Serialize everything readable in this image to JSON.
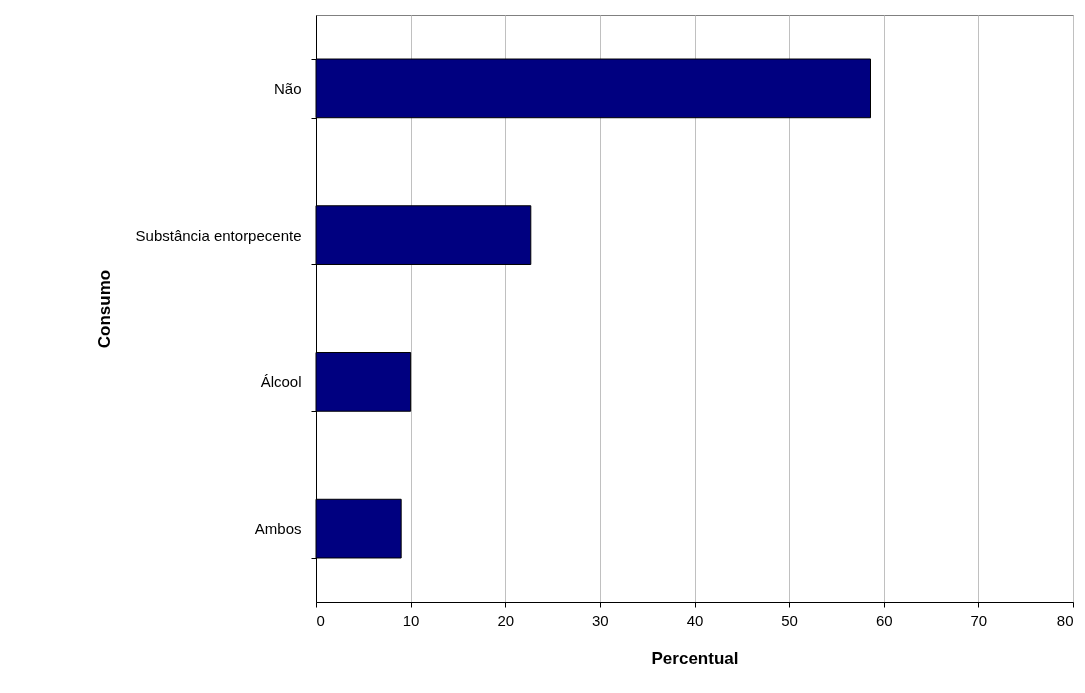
{
  "chart_data": {
    "type": "bar",
    "orientation": "horizontal",
    "xlabel": "Percentual",
    "ylabel": "Consumo",
    "categories": [
      "Não",
      "Substância entorpecente",
      "Álcool",
      "Ambos"
    ],
    "values": [
      58.6,
      22.7,
      10.0,
      9.0
    ],
    "color": "#000080",
    "xlim": [
      0,
      80
    ],
    "xticks": [
      0,
      10,
      20,
      30,
      40,
      50,
      60,
      70,
      80
    ],
    "grid": "x"
  }
}
